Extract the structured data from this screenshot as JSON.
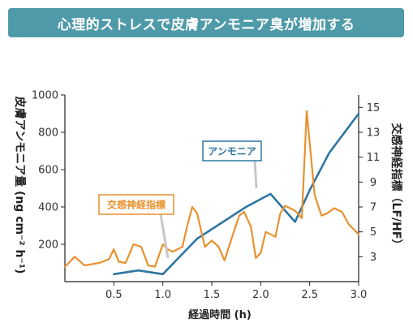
{
  "banner": {
    "title": "心理的ストレスで皮膚アンモニア臭が増加する"
  },
  "colors": {
    "banner": "#4f9aa9",
    "ammonia": "#2e76a3",
    "sympathetic": "#e8912e",
    "axis": "#222222",
    "pointer": "#c8c8c8"
  },
  "chart_data": {
    "type": "line",
    "title": "",
    "xlabel": "経過時間 (h)",
    "ylabel_left": "皮膚アンモニア量 (ng cm⁻² h⁻¹)",
    "ylabel_right": "交感神経指標（LF/HF）",
    "xlim": [
      0,
      3.0
    ],
    "ylim_left": [
      0,
      1000
    ],
    "ylim_right": [
      1,
      16
    ],
    "x_ticks": [
      "0.5",
      "1.0",
      "1.5",
      "2.0",
      "2.5",
      "3.0"
    ],
    "x_tick_values": [
      0.5,
      1.0,
      1.5,
      2.0,
      2.5,
      3.0
    ],
    "y_left_ticks": [
      "200",
      "400",
      "600",
      "800",
      "1000"
    ],
    "y_left_tick_values": [
      200,
      400,
      600,
      800,
      1000
    ],
    "y_right_ticks": [
      "3",
      "5",
      "7",
      "9",
      "11",
      "13",
      "15"
    ],
    "y_right_tick_values": [
      3,
      5,
      7,
      9,
      11,
      13,
      15
    ],
    "grid": false,
    "series": [
      {
        "name": "アンモニア",
        "axis": "left",
        "x": [
          0.5,
          0.75,
          1.0,
          1.35,
          1.85,
          2.1,
          2.35,
          2.5,
          2.7,
          3.0
        ],
        "y": [
          40,
          60,
          40,
          230,
          400,
          470,
          320,
          490,
          690,
          900
        ]
      },
      {
        "name": "交感神経指標",
        "axis": "right",
        "x": [
          0.0,
          0.1,
          0.2,
          0.35,
          0.45,
          0.5,
          0.55,
          0.62,
          0.7,
          0.78,
          0.85,
          0.92,
          1.0,
          1.05,
          1.1,
          1.2,
          1.25,
          1.3,
          1.35,
          1.43,
          1.5,
          1.57,
          1.63,
          1.7,
          1.78,
          1.83,
          1.9,
          1.95,
          2.0,
          2.05,
          2.1,
          2.15,
          2.2,
          2.25,
          2.35,
          2.42,
          2.47,
          2.55,
          2.62,
          2.68,
          2.75,
          2.83,
          2.9,
          3.0
        ],
        "y": [
          2.2,
          3.0,
          2.3,
          2.5,
          2.8,
          3.6,
          2.6,
          2.5,
          4.0,
          3.8,
          2.3,
          2.2,
          4.0,
          3.6,
          3.4,
          3.8,
          5.5,
          7.0,
          6.5,
          3.8,
          4.3,
          3.8,
          2.7,
          4.4,
          6.3,
          6.6,
          5.4,
          2.9,
          3.3,
          5.0,
          4.8,
          4.6,
          6.5,
          7.1,
          6.7,
          6.1,
          14.7,
          8.0,
          6.3,
          6.5,
          6.9,
          6.6,
          5.6,
          4.8
        ]
      }
    ],
    "annotations": [
      {
        "text": "アンモニア",
        "series": "アンモニア"
      },
      {
        "text": "交感神経指標",
        "series": "交感神経指標"
      }
    ]
  }
}
